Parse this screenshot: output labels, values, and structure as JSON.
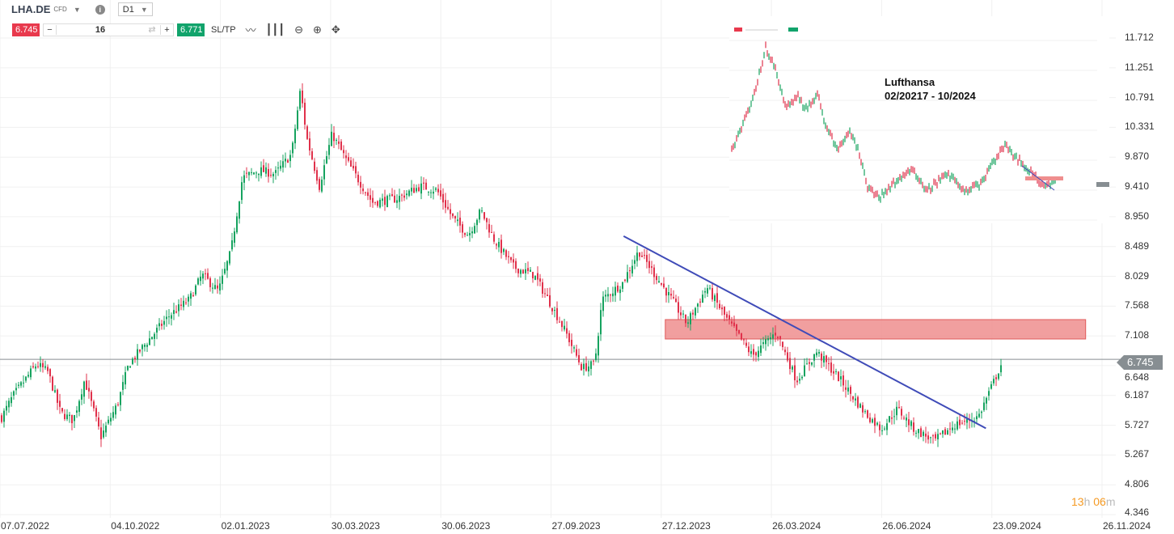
{
  "header": {
    "symbol": "LHA.DE",
    "instrument_type": "CFD",
    "timeframe": "D1",
    "info_icon": "info-icon"
  },
  "trade_bar": {
    "sell_price": "6.745",
    "quantity": "16",
    "buy_price": "6.771",
    "sltp_label": "SL/TP",
    "minus": "−",
    "plus": "+"
  },
  "toolbar_icons": [
    "line-chart-icon",
    "candlestick-icon",
    "zoom-out-icon",
    "zoom-in-icon",
    "crosshair-move-icon"
  ],
  "current_price": "6.745",
  "countdown": {
    "hours": "13",
    "h": "h",
    "minutes": "06",
    "m": "m"
  },
  "colors": {
    "up": "#16a35f",
    "down": "#e0314b",
    "trendline": "#3f4bb8",
    "zone": "#ef8e8e",
    "price_line": "#878e92",
    "countdown": "#f59a23"
  },
  "inset": {
    "title_line1": "Lufthansa",
    "title_line2": "02/20217 - 10/2024"
  },
  "chart_data": {
    "type": "candlestick",
    "y_ticks": [
      "11.712",
      "11.251",
      "10.791",
      "10.331",
      "9.870",
      "9.410",
      "8.950",
      "8.489",
      "8.029",
      "7.568",
      "7.108",
      "6.648",
      "6.187",
      "5.727",
      "5.267",
      "4.806",
      "4.346"
    ],
    "ylim": [
      4.346,
      11.712
    ],
    "x_ticks": [
      "07.07.2022",
      "04.10.2022",
      "02.01.2023",
      "30.03.2023",
      "30.06.2023",
      "27.09.2023",
      "27.12.2023",
      "26.03.2024",
      "26.06.2024",
      "23.09.2024",
      "26.11.2024"
    ],
    "xlim": [
      "2022-07-07",
      "2024-11-26"
    ],
    "grid": true,
    "closes": [
      [
        "2022-07-07",
        5.8
      ],
      [
        "2022-07-17",
        6.17
      ],
      [
        "2022-08-05",
        6.67
      ],
      [
        "2022-08-14",
        6.55
      ],
      [
        "2022-08-24",
        5.92
      ],
      [
        "2022-09-03",
        5.8
      ],
      [
        "2022-09-12",
        6.43
      ],
      [
        "2022-09-25",
        5.55
      ],
      [
        "2022-10-08",
        6.05
      ],
      [
        "2022-10-17",
        6.67
      ],
      [
        "2022-11-02",
        7.05
      ],
      [
        "2022-11-18",
        7.42
      ],
      [
        "2022-12-04",
        7.67
      ],
      [
        "2022-12-14",
        8.05
      ],
      [
        "2022-12-27",
        7.8
      ],
      [
        "2023-01-06",
        8.42
      ],
      [
        "2023-01-15",
        9.55
      ],
      [
        "2023-01-28",
        9.67
      ],
      [
        "2023-02-10",
        9.61
      ],
      [
        "2023-02-23",
        9.92
      ],
      [
        "2023-03-02",
        10.92
      ],
      [
        "2023-03-07",
        10.17
      ],
      [
        "2023-03-17",
        9.42
      ],
      [
        "2023-03-27",
        10.23
      ],
      [
        "2023-04-08",
        9.8
      ],
      [
        "2023-04-28",
        9.17
      ],
      [
        "2023-05-17",
        9.23
      ],
      [
        "2023-06-05",
        9.42
      ],
      [
        "2023-06-18",
        9.36
      ],
      [
        "2023-07-01",
        8.92
      ],
      [
        "2023-07-13",
        8.67
      ],
      [
        "2023-07-23",
        9.05
      ],
      [
        "2023-08-02",
        8.61
      ],
      [
        "2023-08-18",
        8.17
      ],
      [
        "2023-09-03",
        8.05
      ],
      [
        "2023-09-16",
        7.61
      ],
      [
        "2023-09-28",
        7.17
      ],
      [
        "2023-10-11",
        6.61
      ],
      [
        "2023-10-21",
        6.67
      ],
      [
        "2023-10-27",
        7.67
      ],
      [
        "2023-11-12",
        7.92
      ],
      [
        "2023-11-25",
        8.42
      ],
      [
        "2023-12-08",
        8.05
      ],
      [
        "2023-12-21",
        7.67
      ],
      [
        "2024-01-02",
        7.3
      ],
      [
        "2024-01-18",
        7.86
      ],
      [
        "2024-02-03",
        7.36
      ],
      [
        "2024-02-23",
        6.8
      ],
      [
        "2024-03-13",
        7.17
      ],
      [
        "2024-03-29",
        6.42
      ],
      [
        "2024-04-14",
        6.86
      ],
      [
        "2024-05-03",
        6.42
      ],
      [
        "2024-05-22",
        5.92
      ],
      [
        "2024-06-04",
        5.67
      ],
      [
        "2024-06-17",
        5.98
      ],
      [
        "2024-06-30",
        5.67
      ],
      [
        "2024-07-16",
        5.48
      ],
      [
        "2024-08-01",
        5.73
      ],
      [
        "2024-08-20",
        5.86
      ],
      [
        "2024-08-30",
        6.3
      ],
      [
        "2024-09-08",
        6.71
      ]
    ],
    "trendline": [
      [
        "2023-11-13",
        8.65
      ],
      [
        "2024-08-26",
        5.68
      ]
    ],
    "resistance_zone": {
      "from": "2023-12-16",
      "to": "2024-11-13",
      "low": 7.06,
      "high": 7.36
    },
    "current_price_line": 6.745
  }
}
